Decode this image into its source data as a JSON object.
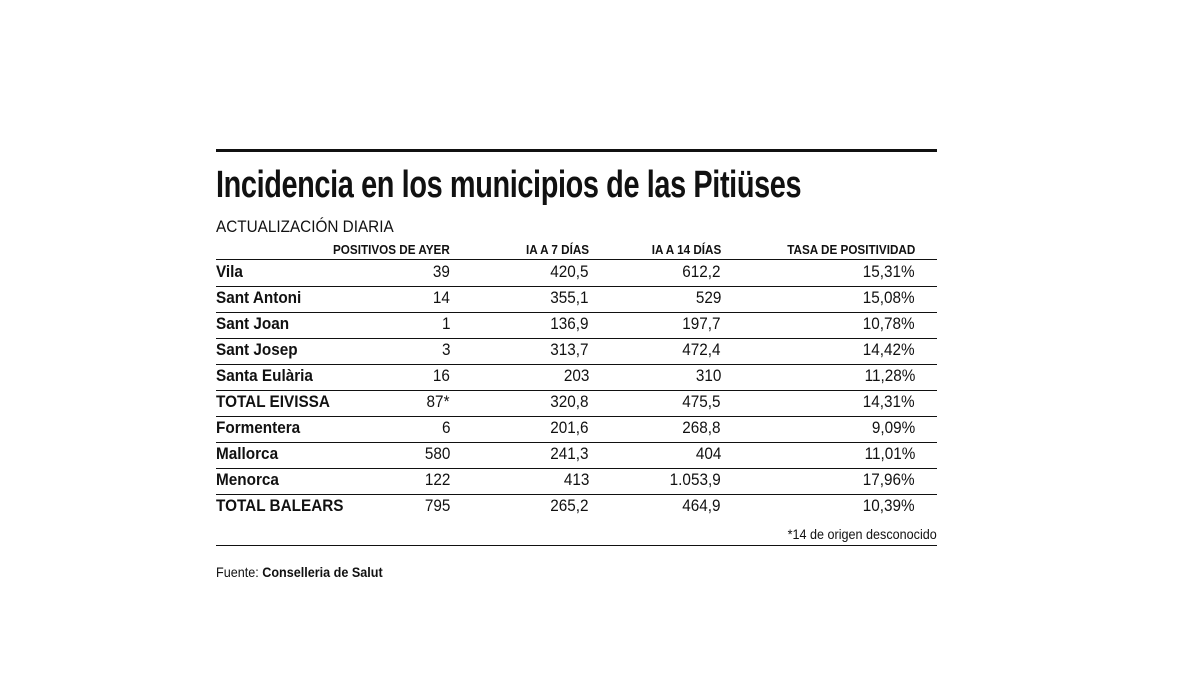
{
  "header": {
    "title": "Incidencia en los municipios de las Pitiüses",
    "subtitle": "ACTUALIZACIÓN DIARIA"
  },
  "table": {
    "columns": [
      "POSITIVOS DE AYER",
      "IA A 7 DÍAS",
      "IA A 14 DÍAS",
      "TASA DE POSITIVIDAD"
    ],
    "rows": [
      [
        "Vila",
        "39",
        "420,5",
        "612,2",
        "15,31%"
      ],
      [
        "Sant Antoni",
        "14",
        "355,1",
        "529",
        "15,08%"
      ],
      [
        "Sant Joan",
        "1",
        "136,9",
        "197,7",
        "10,78%"
      ],
      [
        "Sant Josep",
        "3",
        "313,7",
        "472,4",
        "14,42%"
      ],
      [
        "Santa Eulària",
        "16",
        "203",
        "310",
        "11,28%"
      ],
      [
        "TOTAL EIVISSA",
        "87*",
        "320,8",
        "475,5",
        "14,31%"
      ],
      [
        "Formentera",
        "6",
        "201,6",
        "268,8",
        "9,09%"
      ],
      [
        "Mallorca",
        "580",
        "241,3",
        "404",
        "11,01%"
      ],
      [
        "Menorca",
        "122",
        "413",
        "1.053,9",
        "17,96%"
      ],
      [
        "TOTAL BALEARS",
        "795",
        "265,2",
        "464,9",
        "10,39%"
      ]
    ]
  },
  "note": "*14 de origen desconocido",
  "source": {
    "label": "Fuente:",
    "name": "Conselleria de Salut"
  }
}
